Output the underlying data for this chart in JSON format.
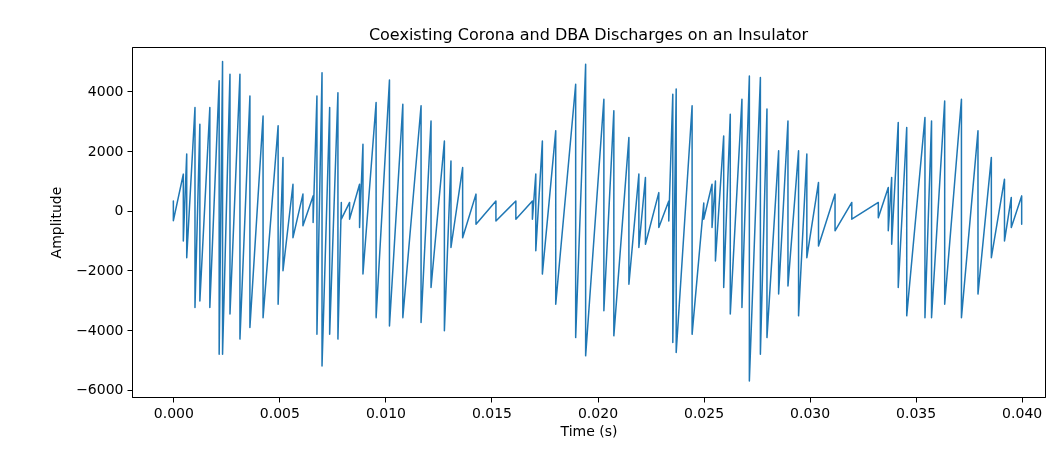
{
  "chart_data": {
    "type": "line",
    "title": "Coexisting Corona and DBA Discharges on an Insulator",
    "xlabel": "Time (s)",
    "ylabel": "Amplitude",
    "xlim": [
      -0.00195,
      0.0411
    ],
    "ylim": [
      -6240,
      5490
    ],
    "xticks": [
      {
        "value": 0,
        "label": "0.000"
      },
      {
        "value": 0.005,
        "label": "0.005"
      },
      {
        "value": 0.01,
        "label": "0.010"
      },
      {
        "value": 0.015,
        "label": "0.015"
      },
      {
        "value": 0.02,
        "label": "0.020"
      },
      {
        "value": 0.025,
        "label": "0.025"
      },
      {
        "value": 0.03,
        "label": "0.030"
      },
      {
        "value": 0.035,
        "label": "0.035"
      },
      {
        "value": 0.04,
        "label": "0.040"
      }
    ],
    "yticks": [
      {
        "value": -6000,
        "label": "−6000"
      },
      {
        "value": -4000,
        "label": "−4000"
      },
      {
        "value": -2000,
        "label": "−2000"
      },
      {
        "value": 0,
        "label": "0"
      },
      {
        "value": 2000,
        "label": "2000"
      },
      {
        "value": 4000,
        "label": "4000"
      }
    ],
    "grid": false,
    "marker": "none",
    "line_style": "solid",
    "series": [
      {
        "color": "#1f77b4",
        "x": [
          0,
          0,
          0.00047,
          0.00047,
          0.00063,
          0.00063,
          0.00102,
          0.00102,
          0.00125,
          0.00125,
          0.00172,
          0.00172,
          0.00216,
          0.00216,
          0.00232,
          0.00232,
          0.00267,
          0.00267,
          0.00314,
          0.00314,
          0.00361,
          0.00361,
          0.00423,
          0.00423,
          0.00494,
          0.00494,
          0.00517,
          0.00517,
          0.00564,
          0.00564,
          0.00611,
          0.00611,
          0.00659,
          0.00659,
          0.00677,
          0.00677,
          0.00701,
          0.00701,
          0.00737,
          0.00737,
          0.00776,
          0.00776,
          0.00792,
          0.00792,
          0.00831,
          0.00831,
          0.00878,
          0.00878,
          0.00894,
          0.00894,
          0.00956,
          0.00956,
          0.01019,
          0.01019,
          0.01082,
          0.01082,
          0.01168,
          0.01168,
          0.01215,
          0.01215,
          0.01278,
          0.01278,
          0.01309,
          0.01309,
          0.01364,
          0.01364,
          0.01427,
          0.01427,
          0.01521,
          0.01521,
          0.01615,
          0.01615,
          0.01693,
          0.01693,
          0.01709,
          0.01709,
          0.0174,
          0.0174,
          0.01803,
          0.01803,
          0.01897,
          0.01897,
          0.01944,
          0.01944,
          0.0203,
          0.0203,
          0.02077,
          0.02077,
          0.02148,
          0.02148,
          0.02195,
          0.02195,
          0.02226,
          0.02226,
          0.02289,
          0.02289,
          0.02336,
          0.02336,
          0.02355,
          0.02355,
          0.02371,
          0.02371,
          0.02446,
          0.02446,
          0.02501,
          0.02501,
          0.0254,
          0.0254,
          0.02556,
          0.02556,
          0.02595,
          0.02595,
          0.02626,
          0.02626,
          0.02681,
          0.02681,
          0.02716,
          0.02716,
          0.02768,
          0.02768,
          0.02799,
          0.02799,
          0.02854,
          0.02854,
          0.02898,
          0.02898,
          0.02948,
          0.02948,
          0.02987,
          0.02987,
          0.03042,
          0.03042,
          0.0312,
          0.0312,
          0.03199,
          0.03199,
          0.03324,
          0.03324,
          0.03371,
          0.03371,
          0.03387,
          0.03387,
          0.03418,
          0.03418,
          0.03458,
          0.03458,
          0.03544,
          0.03544,
          0.03575,
          0.03575,
          0.03637,
          0.03637,
          0.03716,
          0.03716,
          0.03794,
          0.03794,
          0.03857,
          0.03857,
          0.03919,
          0.03919,
          0.03951,
          0.03951,
          0.04,
          0.04
        ],
        "values": [
          330,
          -330,
          1230,
          -1010,
          1900,
          -1570,
          3460,
          -3240,
          2900,
          -3020,
          3460,
          -3240,
          4360,
          -4810,
          5000,
          -4810,
          4580,
          -3460,
          4580,
          -4300,
          3850,
          -3910,
          3180,
          -3580,
          2850,
          -3130,
          1790,
          -2010,
          890,
          -900,
          560,
          -500,
          500,
          -390,
          3850,
          -4140,
          4630,
          -5200,
          3460,
          -4140,
          3960,
          -4300,
          280,
          -280,
          280,
          -280,
          890,
          -560,
          2230,
          -2120,
          3630,
          -3580,
          4380,
          -3860,
          3570,
          -3580,
          3520,
          -3740,
          3010,
          -2570,
          2340,
          -4020,
          1670,
          -1230,
          1450,
          -900,
          560,
          -450,
          330,
          -340,
          330,
          -280,
          330,
          -280,
          1230,
          -1340,
          2340,
          -2120,
          2680,
          -3130,
          4240,
          -4250,
          4910,
          -4860,
          3740,
          -3350,
          3350,
          -4190,
          2460,
          -2460,
          1230,
          -1230,
          1120,
          -1120,
          610,
          -560,
          330,
          -340,
          3910,
          -4410,
          4080,
          -4750,
          3520,
          -4140,
          260,
          -280,
          890,
          -560,
          1000,
          -1680,
          2510,
          -2570,
          3240,
          -3460,
          3740,
          -3240,
          4520,
          -5700,
          4470,
          -4810,
          3410,
          -4250,
          2010,
          -2790,
          3010,
          -2520,
          2010,
          -3520,
          1900,
          -1570,
          950,
          -1180,
          560,
          -670,
          280,
          -280,
          280,
          -230,
          780,
          -670,
          1120,
          -1120,
          2960,
          -2570,
          2790,
          -3520,
          3130,
          -3580,
          3010,
          -3580,
          3680,
          -3130,
          3740,
          -3580,
          2680,
          -2790,
          1790,
          -1570,
          1060,
          -1010,
          450,
          -560,
          500,
          -450
        ]
      }
    ]
  }
}
